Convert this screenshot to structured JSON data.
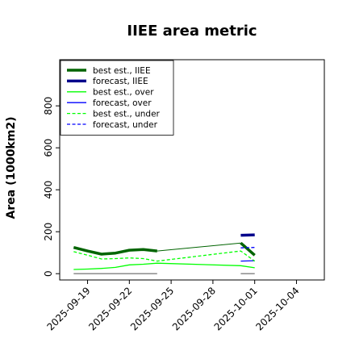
{
  "chart_data": {
    "type": "line",
    "title": "IIEE area metric",
    "ylabel": "Area (1000km2)",
    "xlabel": "",
    "xlim": [
      "2025-09-17",
      "2025-10-06"
    ],
    "ylim": [
      -30,
      1020
    ],
    "yticks": [
      0,
      200,
      400,
      600,
      800
    ],
    "xticks": [
      "2025-09-19",
      "2025-09-22",
      "2025-09-25",
      "2025-09-28",
      "2025-10-01",
      "2025-10-04"
    ],
    "highlight_tick": "2025-09-25",
    "highlight_color": "#228B22",
    "grid": false,
    "legend_position": "top-left",
    "series": [
      {
        "name": "best est., IIEE",
        "color": "#006400",
        "dash": "solid",
        "width": 3.5,
        "points": [
          [
            "2025-09-18",
            125
          ],
          [
            "2025-09-19",
            108
          ],
          [
            "2025-09-20",
            93
          ],
          [
            "2025-09-21",
            98
          ],
          [
            "2025-09-22",
            112
          ],
          [
            "2025-09-23",
            115
          ],
          [
            "2025-09-24",
            108
          ]
        ]
      },
      {
        "name": "",
        "color": "#006400",
        "dash": "solid",
        "width": 1,
        "points": [
          [
            "2025-09-24",
            108
          ],
          [
            "2025-09-30",
            146
          ]
        ]
      },
      {
        "name": "",
        "color": "#006400",
        "dash": "solid",
        "width": 3.5,
        "points": [
          [
            "2025-09-30",
            146
          ],
          [
            "2025-10-01",
            88
          ]
        ]
      },
      {
        "name": "forecast, IIEE",
        "color": "#00008B",
        "dash": "solid",
        "width": 3.5,
        "points": [
          [
            "2025-09-30",
            183
          ],
          [
            "2025-10-01",
            185
          ]
        ]
      },
      {
        "name": "best est., over",
        "color": "#00FF00",
        "dash": "solid",
        "width": 1.3,
        "points": [
          [
            "2025-09-18",
            20
          ],
          [
            "2025-09-19",
            22
          ],
          [
            "2025-09-20",
            25
          ],
          [
            "2025-09-21",
            30
          ],
          [
            "2025-09-22",
            42
          ],
          [
            "2025-09-23",
            45
          ],
          [
            "2025-09-24",
            50
          ],
          [
            "2025-09-30",
            38
          ],
          [
            "2025-10-01",
            28
          ]
        ]
      },
      {
        "name": "forecast, over",
        "color": "#0000FF",
        "dash": "solid",
        "width": 1.3,
        "points": [
          [
            "2025-09-30",
            60
          ],
          [
            "2025-10-01",
            62
          ]
        ]
      },
      {
        "name": "best est., under",
        "color": "#00FF00",
        "dash": "dashed",
        "width": 1.3,
        "points": [
          [
            "2025-09-18",
            105
          ],
          [
            "2025-09-19",
            88
          ],
          [
            "2025-09-20",
            70
          ],
          [
            "2025-09-21",
            72
          ],
          [
            "2025-09-22",
            75
          ],
          [
            "2025-09-23",
            72
          ],
          [
            "2025-09-24",
            60
          ],
          [
            "2025-09-30",
            108
          ],
          [
            "2025-10-01",
            60
          ]
        ]
      },
      {
        "name": "forecast, under",
        "color": "#0000FF",
        "dash": "dashed",
        "width": 1.3,
        "points": [
          [
            "2025-09-30",
            123
          ],
          [
            "2025-10-01",
            125
          ]
        ]
      },
      {
        "name": "",
        "color": "#808080",
        "dash": "solid",
        "width": 1.3,
        "points": [
          [
            "2025-09-18",
            0
          ],
          [
            "2025-09-24",
            0
          ]
        ]
      },
      {
        "name": "",
        "color": "#808080",
        "dash": "solid",
        "width": 1.3,
        "points": [
          [
            "2025-09-30",
            0
          ],
          [
            "2025-10-01",
            0
          ]
        ]
      }
    ]
  }
}
